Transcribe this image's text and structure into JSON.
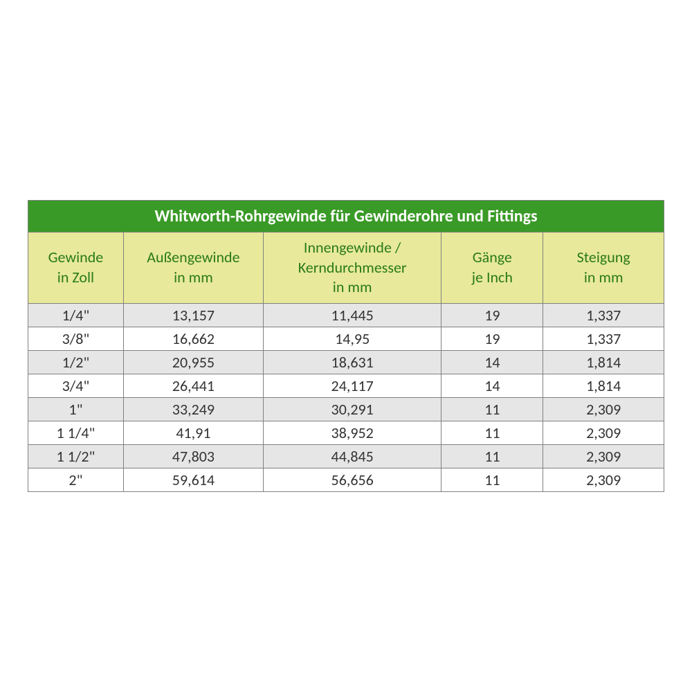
{
  "table": {
    "title": "Whitworth-Rohrgewinde für Gewinderohre und Fittings",
    "title_bg": "#3a9a27",
    "title_color": "#ffffff",
    "title_fontsize": 24,
    "header_bg": "#e8e99a",
    "header_color": "#2a7a1a",
    "header_fontsize": 22,
    "body_fontsize": 22,
    "border_color": "#808080",
    "row_odd_bg": "#e6e6e6",
    "row_even_bg": "#ffffff",
    "columns": [
      {
        "line1": "Gewinde",
        "line2": "in Zoll",
        "width_pct": 15
      },
      {
        "line1": "Außengewinde",
        "line2": "in mm",
        "width_pct": 22
      },
      {
        "line1": "Innengewinde /",
        "line2": "Kerndurchmesser",
        "line3": "in mm",
        "width_pct": 28
      },
      {
        "line1": "Gänge",
        "line2": "je Inch",
        "width_pct": 16
      },
      {
        "line1": "Steigung",
        "line2": "in mm",
        "width_pct": 19
      }
    ],
    "rows": [
      [
        "1/4\"",
        "13,157",
        "11,445",
        "19",
        "1,337"
      ],
      [
        "3/8\"",
        "16,662",
        "14,95",
        "19",
        "1,337"
      ],
      [
        "1/2\"",
        "20,955",
        "18,631",
        "14",
        "1,814"
      ],
      [
        "3/4\"",
        "26,441",
        "24,117",
        "14",
        "1,814"
      ],
      [
        "1\"",
        "33,249",
        "30,291",
        "11",
        "2,309"
      ],
      [
        "1 1/4\"",
        "41,91",
        "38,952",
        "11",
        "2,309"
      ],
      [
        "1 1/2\"",
        "47,803",
        "44,845",
        "11",
        "2,309"
      ],
      [
        "2\"",
        "59,614",
        "56,656",
        "11",
        "2,309"
      ]
    ]
  }
}
